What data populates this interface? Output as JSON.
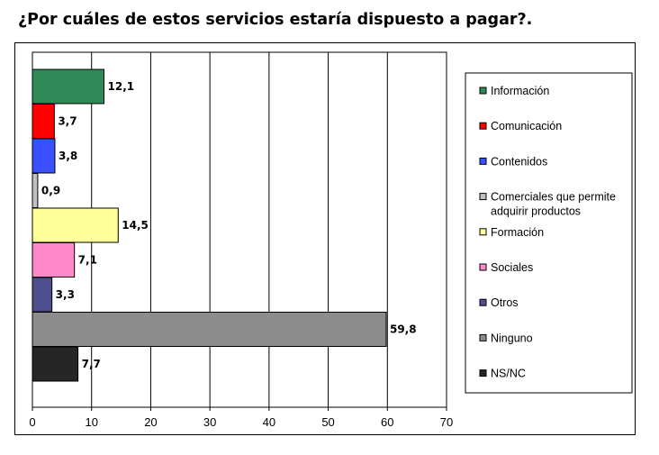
{
  "title": "¿Por cuáles de estos servicios estaría dispuesto a pagar?.",
  "chart_data": {
    "type": "bar",
    "orientation": "horizontal",
    "categories": [
      "Información",
      "Comunicación",
      "Contenidos",
      "Comerciales que permite adquirir productos",
      "Formación",
      "Sociales",
      "Otros",
      "Ninguno",
      "NS/NC"
    ],
    "values": [
      12.1,
      3.7,
      3.8,
      0.9,
      14.5,
      7.1,
      3.3,
      59.8,
      7.7
    ],
    "value_labels": [
      "12,1",
      "3,7",
      "3,8",
      "0,9",
      "14,5",
      "7,1",
      "3,3",
      "59,8",
      "7,7"
    ],
    "colors": [
      "#2e8b57",
      "#ff0000",
      "#3a50ff",
      "#c0c0c0",
      "#ffff99",
      "#ff88cc",
      "#4f4f90",
      "#8c8c8c",
      "#262626"
    ],
    "legend_lines": [
      [
        "Información"
      ],
      [
        "Comunicación"
      ],
      [
        "Contenidos"
      ],
      [
        "Comerciales que permite",
        "adquirir productos"
      ],
      [
        "Formación"
      ],
      [
        "Sociales"
      ],
      [
        "Otros"
      ],
      [
        "Ninguno"
      ],
      [
        "NS/NC"
      ]
    ],
    "xlim": [
      0,
      70
    ],
    "xticks": [
      "0",
      "10",
      "20",
      "30",
      "40",
      "50",
      "60",
      "70"
    ],
    "xlabel": "",
    "ylabel": "",
    "grid": "vertical",
    "legend_position": "right"
  }
}
